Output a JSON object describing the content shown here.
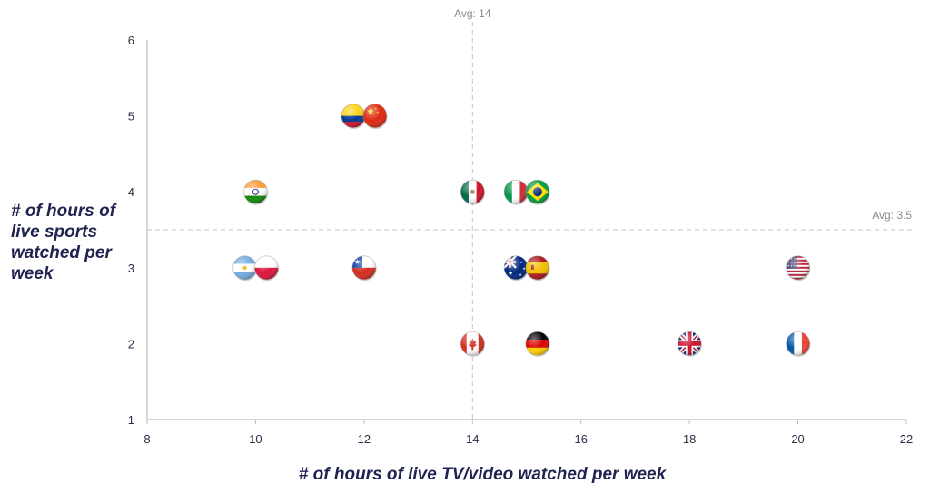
{
  "chart_data": {
    "type": "scatter",
    "xlabel": "# of hours of live TV/video watched per week",
    "ylabel_lines": [
      "# of hours of",
      "live sports",
      "watched per",
      "week"
    ],
    "xlim": [
      8,
      22
    ],
    "ylim": [
      1,
      6
    ],
    "x_ticks": [
      "8",
      "10",
      "12",
      "14",
      "16",
      "18",
      "20",
      "22"
    ],
    "y_ticks": [
      "1",
      "2",
      "3",
      "4",
      "5",
      "6"
    ],
    "grid": false,
    "reference_lines": {
      "x_avg": {
        "value": 14,
        "label": "Avg: 14"
      },
      "y_avg": {
        "value": 3.5,
        "label": "Avg: 3.5"
      }
    },
    "points": [
      {
        "country": "Colombia",
        "flag": "colombia-flag",
        "x": 11.8,
        "y": 5
      },
      {
        "country": "China",
        "flag": "china-flag",
        "x": 12.2,
        "y": 5
      },
      {
        "country": "India",
        "flag": "india-flag",
        "x": 10,
        "y": 4
      },
      {
        "country": "Mexico",
        "flag": "mexico-flag",
        "x": 14,
        "y": 4
      },
      {
        "country": "Italy",
        "flag": "italy-flag",
        "x": 14.8,
        "y": 4
      },
      {
        "country": "Brazil",
        "flag": "brazil-flag",
        "x": 15.2,
        "y": 4
      },
      {
        "country": "Argentina",
        "flag": "argentina-flag",
        "x": 9.8,
        "y": 3
      },
      {
        "country": "Poland",
        "flag": "poland-flag",
        "x": 10.2,
        "y": 3
      },
      {
        "country": "Chile",
        "flag": "chile-flag",
        "x": 12,
        "y": 3
      },
      {
        "country": "Australia",
        "flag": "australia-flag",
        "x": 14.8,
        "y": 3
      },
      {
        "country": "Spain",
        "flag": "spain-flag",
        "x": 15.2,
        "y": 3
      },
      {
        "country": "United States",
        "flag": "usa-flag",
        "x": 20,
        "y": 3
      },
      {
        "country": "Canada",
        "flag": "canada-flag",
        "x": 14,
        "y": 2
      },
      {
        "country": "Germany",
        "flag": "germany-flag",
        "x": 15.2,
        "y": 2
      },
      {
        "country": "United Kingdom",
        "flag": "uk-flag",
        "x": 18,
        "y": 2
      },
      {
        "country": "France",
        "flag": "france-flag",
        "x": 20,
        "y": 2
      }
    ]
  }
}
